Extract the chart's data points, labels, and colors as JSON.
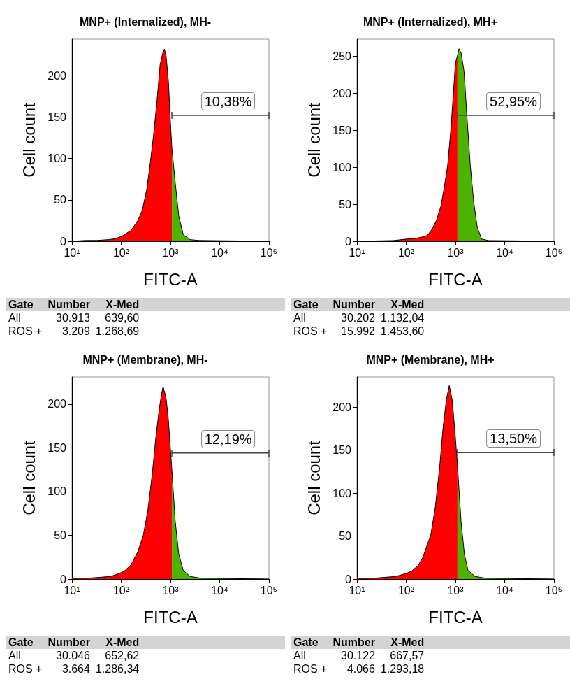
{
  "chart_data": [
    {
      "type": "area",
      "title": "MNP+ (Internalized), MH-",
      "xlabel": "FITC-A",
      "ylabel": "Cell count",
      "log": "x",
      "grid": false,
      "xlim": [
        10,
        100000
      ],
      "xticks": [
        {
          "value": 10,
          "label": "10¹"
        },
        {
          "value": 100,
          "label": "10²"
        },
        {
          "value": 1000,
          "label": "10³"
        },
        {
          "value": 10000,
          "label": "10⁴"
        },
        {
          "value": 100000,
          "label": "10⁵"
        }
      ],
      "ylim": [
        0,
        244
      ],
      "yticks": [
        0,
        50,
        100,
        150,
        200
      ],
      "series": [
        {
          "color": "#ff0000",
          "x": [
            10,
            19,
            32,
            55,
            75,
            102,
            158,
            218,
            270,
            333,
            390,
            456,
            535,
            616,
            696,
            755,
            815,
            910,
            1000,
            1070
          ],
          "values": [
            0,
            1,
            1,
            2,
            3,
            6,
            13,
            25,
            38,
            64,
            95,
            129,
            171,
            213,
            227,
            232,
            224,
            193,
            143,
            112
          ]
        },
        {
          "color": "#4db300",
          "x": [
            1070,
            1255,
            1470,
            1820,
            2500,
            3800,
            100000
          ],
          "values": [
            112,
            70,
            31,
            8,
            2,
            1,
            0
          ]
        },
        {
          "type": "line",
          "name": "10,38%",
          "color": "#444444",
          "x": [
            1070,
            100000
          ],
          "values": [
            152,
            152
          ]
        }
      ],
      "annotations": [
        "Gate\tNumber\tX-Med",
        "All\t30.913\t639,60",
        "ROS +\t3.209\t1.268,69"
      ]
    },
    {
      "type": "area",
      "title": "MNP+ (Internalized), MH+",
      "xlabel": "FITC-A",
      "ylabel": "Cell count",
      "log": "x",
      "grid": false,
      "xlim": [
        10,
        100000
      ],
      "xticks": [
        {
          "value": 10,
          "label": "10¹"
        },
        {
          "value": 100,
          "label": "10²"
        },
        {
          "value": 1000,
          "label": "10³"
        },
        {
          "value": 10000,
          "label": "10⁴"
        },
        {
          "value": 100000,
          "label": "10⁵"
        }
      ],
      "ylim": [
        0,
        273
      ],
      "yticks": [
        0,
        50,
        100,
        150,
        200,
        250
      ],
      "series": [
        {
          "color": "#ff0000",
          "x": [
            10,
            55,
            102,
            158,
            218,
            270,
            333,
            410,
            505,
            590,
            696,
            815,
            910,
            1000,
            1100
          ],
          "values": [
            0,
            1,
            3,
            4,
            6,
            8,
            16,
            28,
            47,
            72,
            103,
            154,
            201,
            241,
            251
          ]
        },
        {
          "color": "#4db300",
          "x": [
            1100,
            1180,
            1310,
            1500,
            1710,
            2000,
            2350,
            2770,
            3400,
            4700,
            100000
          ],
          "values": [
            251,
            260,
            254,
            229,
            169,
            103,
            53,
            19,
            3,
            1,
            0
          ]
        },
        {
          "type": "line",
          "name": "52,95%",
          "color": "#444444",
          "x": [
            1100,
            100000
          ],
          "values": [
            170,
            170
          ]
        }
      ],
      "annotations": [
        "Gate\tNumber\tX-Med",
        "All\t30.202\t1.132,04",
        "ROS +\t15.992\t1.453,60"
      ]
    },
    {
      "type": "area",
      "title": "MNP+ (Membrane), MH-",
      "xlabel": "FITC-A",
      "ylabel": "Cell count",
      "log": "x",
      "grid": false,
      "xlim": [
        10,
        100000
      ],
      "xticks": [
        {
          "value": 10,
          "label": "10¹"
        },
        {
          "value": 100,
          "label": "10²"
        },
        {
          "value": 1000,
          "label": "10³"
        },
        {
          "value": 10000,
          "label": "10⁴"
        },
        {
          "value": 100000,
          "label": "10⁵"
        }
      ],
      "ylim": [
        0,
        231
      ],
      "yticks": [
        0,
        50,
        100,
        150,
        200
      ],
      "series": [
        {
          "color": "#ff0000",
          "x": [
            10,
            21,
            36,
            61,
            88,
            115,
            157,
            217,
            281,
            349,
            431,
            505,
            592,
            660,
            710,
            815,
            905,
            1000,
            1070
          ],
          "values": [
            1,
            1,
            2,
            3,
            6,
            9,
            16,
            31,
            50,
            79,
            122,
            162,
            194,
            212,
            220,
            207,
            183,
            148,
            124
          ]
        },
        {
          "color": "#4db300",
          "x": [
            1070,
            1250,
            1470,
            1820,
            2500,
            4200,
            100000
          ],
          "values": [
            124,
            66,
            29,
            10,
            3,
            1,
            0
          ]
        },
        {
          "type": "line",
          "name": "12,19%",
          "color": "#444444",
          "x": [
            1070,
            100000
          ],
          "values": [
            144,
            144
          ]
        }
      ],
      "annotations": [
        "Gate\tNumber\tX-Med",
        "All\t30.046\t652,62",
        "ROS +\t3.664\t1.286,34"
      ]
    },
    {
      "type": "area",
      "title": "MNP+ (Membrane), MH+",
      "xlabel": "FITC-A",
      "ylabel": "Cell count",
      "log": "x",
      "grid": false,
      "xlim": [
        10,
        100000
      ],
      "xticks": [
        {
          "value": 10,
          "label": "10¹"
        },
        {
          "value": 100,
          "label": "10²"
        },
        {
          "value": 1000,
          "label": "10³"
        },
        {
          "value": 10000,
          "label": "10⁴"
        },
        {
          "value": 100000,
          "label": "10⁵"
        }
      ],
      "ylim": [
        0,
        235
      ],
      "yticks": [
        0,
        50,
        100,
        150,
        200
      ],
      "series": [
        {
          "color": "#ff0000",
          "x": [
            10,
            21,
            36,
            61,
            93,
            128,
            176,
            217,
            268,
            315,
            389,
            481,
            565,
            660,
            750,
            860,
            975,
            1100
          ],
          "values": [
            1,
            1,
            2,
            3,
            6,
            9,
            16,
            25,
            40,
            51,
            83,
            132,
            178,
            210,
            225,
            208,
            172,
            132
          ]
        },
        {
          "color": "#4db300",
          "x": [
            1100,
            1300,
            1520,
            1800,
            2500,
            4200,
            100000
          ],
          "values": [
            132,
            67,
            29,
            10,
            3,
            1,
            0
          ]
        },
        {
          "type": "line",
          "name": "13,50%",
          "color": "#444444",
          "x": [
            1100,
            100000
          ],
          "values": [
            147,
            147
          ]
        }
      ],
      "annotations": [
        "Gate\tNumber\tX-Med",
        "All\t30.122\t667,57",
        "ROS +\t4.066\t1.293,18"
      ]
    }
  ]
}
